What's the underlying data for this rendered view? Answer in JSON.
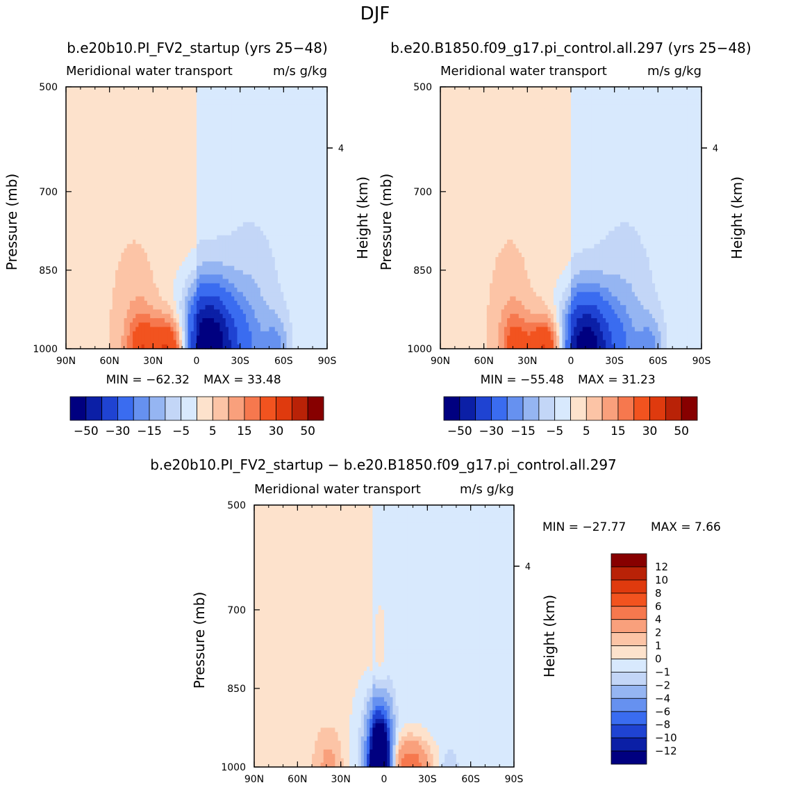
{
  "figure": {
    "season": "DJF",
    "label_left_case": "b.e20b10.PI_FV2_startup (yrs 25−48)",
    "label_right_case": "b.e20.B1850.f09_g17.pi_control.all.297 (yrs 25−48)",
    "label_diff": "b.e20b10.PI_FV2_startup − b.e20.B1850.f09_g17.pi_control.all.297"
  },
  "chart_data": [
    {
      "type": "heatmap",
      "id": "left",
      "title": "Meridional water transport",
      "units": "m/s g/kg",
      "ylabel": "Pressure (mb)",
      "ylabel_right": "Height (km)",
      "xticks": [
        "90N",
        "60N",
        "30N",
        "0",
        "30S",
        "60S",
        "90S"
      ],
      "yticks": [
        "500",
        "700",
        "850",
        "1000"
      ],
      "ytick_values": [
        500,
        700,
        850,
        1000
      ],
      "ylim": [
        1000,
        500
      ],
      "right_tick": "4",
      "min_label": "MIN = −62.32",
      "max_label": "MAX =  33.48",
      "min": -62.32,
      "max": 33.48,
      "levels": [
        -50,
        -40,
        -30,
        -20,
        -15,
        -10,
        -5,
        0,
        5,
        10,
        15,
        20,
        30,
        40,
        50
      ],
      "colorbar_labels": [
        "−50",
        "−30",
        "−15",
        "−5",
        "5",
        "15",
        "30",
        "50"
      ],
      "features": [
        {
          "lat": -8,
          "p_top": 835,
          "halfwidth": 18,
          "value": -62
        },
        {
          "lat": 18,
          "p_top": 910,
          "halfwidth": 13,
          "value": 33
        },
        {
          "lat": 38,
          "p_top": 900,
          "halfwidth": 9,
          "value": 18
        },
        {
          "lat": 43,
          "p_top": 700,
          "halfwidth": 17,
          "value": 7
        },
        {
          "lat": -37,
          "p_top": 720,
          "halfwidth": 18,
          "value": -10
        },
        {
          "lat": -55,
          "p_top": 910,
          "halfwidth": 8,
          "value": -12
        },
        {
          "lat": -35,
          "p_top": 890,
          "halfwidth": 12,
          "value": -4
        }
      ]
    },
    {
      "type": "heatmap",
      "id": "right",
      "title": "Meridional water transport",
      "units": "m/s g/kg",
      "ylabel": "Pressure (mb)",
      "ylabel_right": "Height (km)",
      "xticks": [
        "90N",
        "60N",
        "30N",
        "0",
        "30S",
        "60S",
        "90S"
      ],
      "yticks": [
        "500",
        "700",
        "850",
        "1000"
      ],
      "ytick_values": [
        500,
        700,
        850,
        1000
      ],
      "ylim": [
        1000,
        500
      ],
      "right_tick": "4",
      "min_label": "MIN = −55.48",
      "max_label": "MAX =  31.23",
      "min": -55.48,
      "max": 31.23,
      "levels": [
        -50,
        -40,
        -30,
        -20,
        -15,
        -10,
        -5,
        0,
        5,
        10,
        15,
        20,
        30,
        40,
        50
      ],
      "colorbar_labels": [
        "−50",
        "−30",
        "−15",
        "−5",
        "5",
        "15",
        "30",
        "50"
      ],
      "features": [
        {
          "lat": -10,
          "p_top": 850,
          "halfwidth": 17,
          "value": -55
        },
        {
          "lat": 17,
          "p_top": 910,
          "halfwidth": 12,
          "value": 31
        },
        {
          "lat": 38,
          "p_top": 900,
          "halfwidth": 9,
          "value": 16
        },
        {
          "lat": 42,
          "p_top": 700,
          "halfwidth": 16,
          "value": 7
        },
        {
          "lat": -37,
          "p_top": 720,
          "halfwidth": 18,
          "value": -10
        },
        {
          "lat": -55,
          "p_top": 910,
          "halfwidth": 8,
          "value": -12
        },
        {
          "lat": -35,
          "p_top": 890,
          "halfwidth": 12,
          "value": -4
        }
      ]
    },
    {
      "type": "heatmap",
      "id": "diff",
      "title": "Meridional water transport",
      "units": "m/s g/kg",
      "ylabel": "Pressure (mb)",
      "ylabel_right": "Height (km)",
      "xticks": [
        "90N",
        "60N",
        "30N",
        "0",
        "30S",
        "60S",
        "90S"
      ],
      "yticks": [
        "500",
        "700",
        "850",
        "1000"
      ],
      "ytick_values": [
        500,
        700,
        850,
        1000
      ],
      "ylim": [
        1000,
        500
      ],
      "right_tick": "4",
      "min_label": "MIN = −27.77",
      "max_label": "MAX =    7.66",
      "min": -27.77,
      "max": 7.66,
      "levels": [
        -12,
        -10,
        -8,
        -6,
        -4,
        -2,
        -1,
        0,
        1,
        2,
        4,
        6,
        8,
        10,
        12
      ],
      "colorbar_labels": [
        "12",
        "10",
        "8",
        "6",
        "4",
        "2",
        "1",
        "0",
        "−1",
        "−2",
        "−4",
        "−6",
        "−8",
        "−10",
        "−12"
      ],
      "features": [
        {
          "lat": 3,
          "p_top": 850,
          "halfwidth": 7,
          "value": -27
        },
        {
          "lat": -18,
          "p_top": 920,
          "halfwidth": 14,
          "value": 6
        },
        {
          "lat": 3,
          "p_top": 650,
          "halfwidth": 5,
          "value": 3
        },
        {
          "lat": 38,
          "p_top": 900,
          "halfwidth": 10,
          "value": 2
        },
        {
          "lat": 10,
          "p_top": 780,
          "halfwidth": 14,
          "value": -2
        },
        {
          "lat": -45,
          "p_top": 950,
          "halfwidth": 6,
          "value": -1.5
        }
      ]
    }
  ]
}
